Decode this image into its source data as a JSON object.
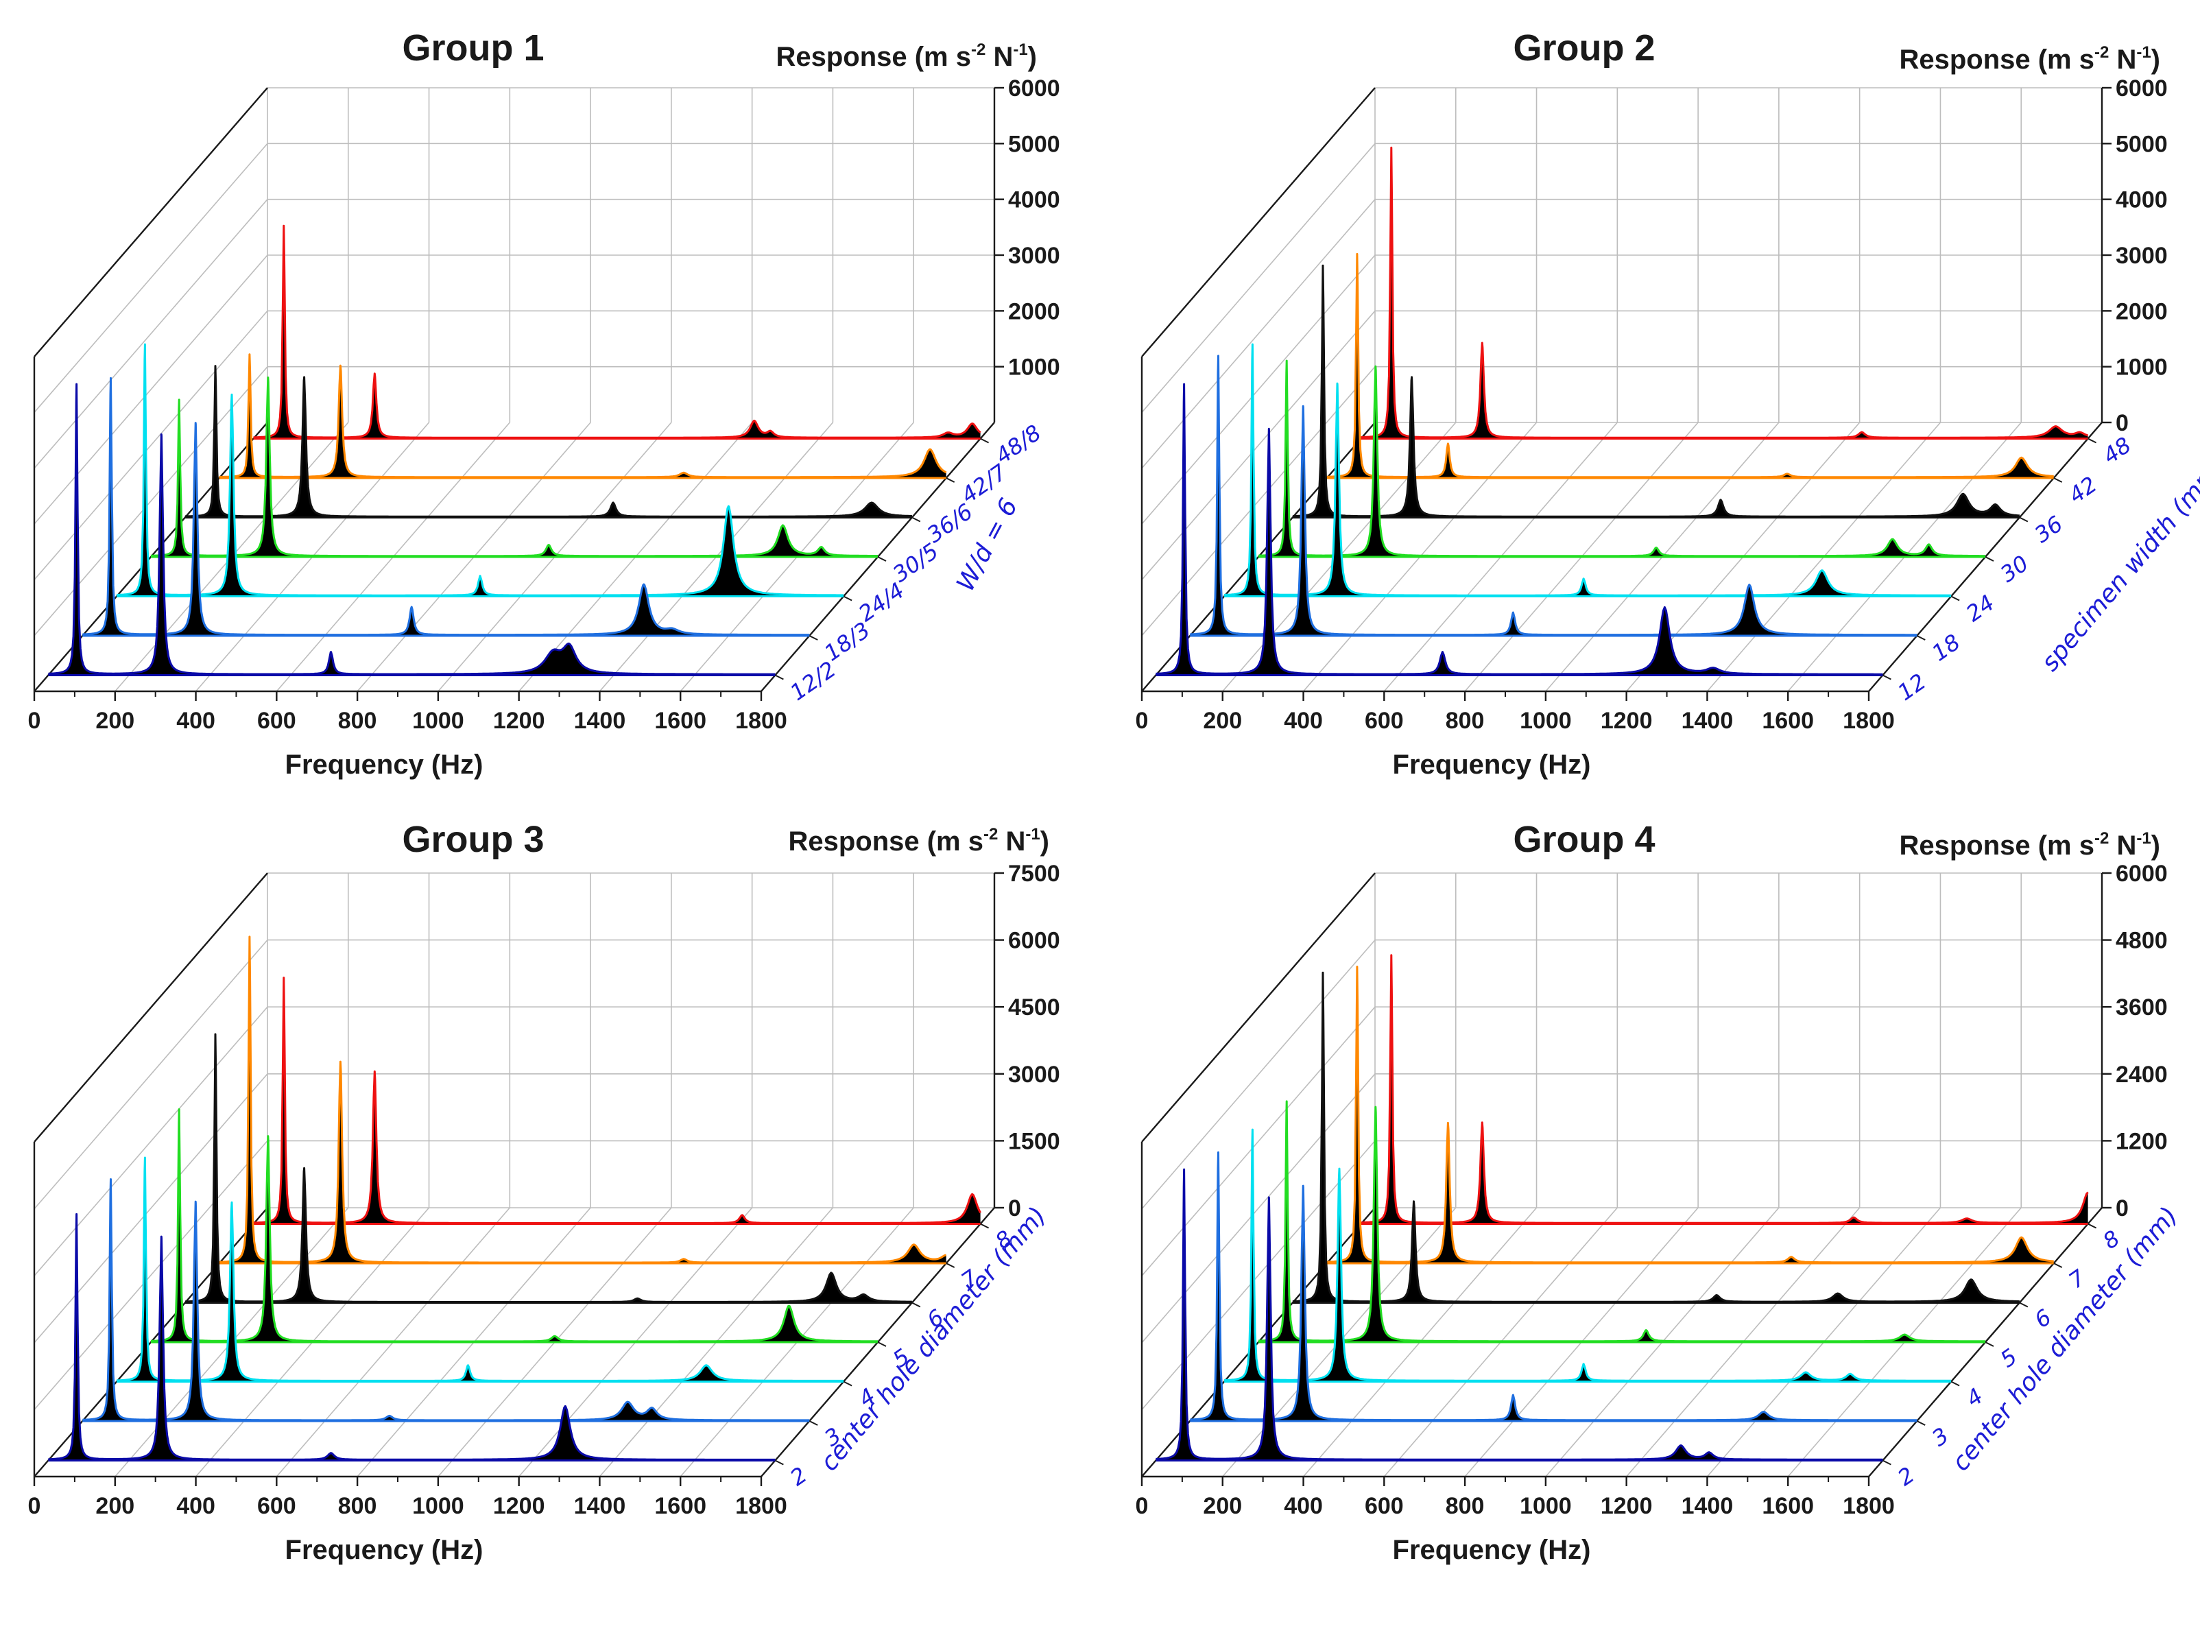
{
  "chart_data": [
    {
      "type": "waterfall",
      "title": "Group 1",
      "xlabel": "Frequency (Hz)",
      "ylabel": {
        "main": "Response (m s",
        "sup1": "-2",
        "mid": " N",
        "sup2": "-1",
        "end": ")"
      },
      "xlim": [
        0,
        1800
      ],
      "xticks": [
        0,
        200,
        400,
        600,
        800,
        1000,
        1200,
        1400,
        1600,
        1800
      ],
      "ylim": [
        0,
        6000
      ],
      "yticks": [
        1000,
        2000,
        3000,
        4000,
        5000,
        6000
      ],
      "zlabel": "W/d = 6",
      "grid": true,
      "series": [
        {
          "name": "12/2",
          "color": "#0a0aa8",
          "peaks": [
            [
              70,
              5200,
              3
            ],
            [
              280,
              4300,
              5
            ],
            [
              700,
              400,
              6
            ],
            [
              1250,
              350,
              25
            ],
            [
              1290,
              450,
              20
            ]
          ]
        },
        {
          "name": "18/3",
          "color": "#1f6fe0",
          "peaks": [
            [
              70,
              4600,
              3
            ],
            [
              280,
              3800,
              5
            ],
            [
              815,
              500,
              6
            ],
            [
              1390,
              900,
              15
            ],
            [
              1460,
              80,
              20
            ]
          ]
        },
        {
          "name": "24/4",
          "color": "#00e0f0",
          "peaks": [
            [
              70,
              4500,
              3
            ],
            [
              285,
              3600,
              5
            ],
            [
              900,
              350,
              6
            ],
            [
              1515,
              1600,
              15
            ]
          ]
        },
        {
          "name": "30/5",
          "color": "#22dd22",
          "peaks": [
            [
              70,
              2800,
              3
            ],
            [
              290,
              3200,
              5
            ],
            [
              985,
              200,
              8
            ],
            [
              1565,
              550,
              15
            ],
            [
              1660,
              150,
              10
            ]
          ]
        },
        {
          "name": "36/6",
          "color": "#111111",
          "peaks": [
            [
              75,
              2700,
              3
            ],
            [
              295,
              2500,
              5
            ],
            [
              1060,
              250,
              8
            ],
            [
              1700,
              250,
              20
            ]
          ]
        },
        {
          "name": "42/7",
          "color": "#ff8800",
          "peaks": [
            [
              75,
              2200,
              3
            ],
            [
              300,
              2000,
              5
            ],
            [
              1150,
              80,
              12
            ],
            [
              1760,
              500,
              18
            ]
          ]
        },
        {
          "name": "48/8",
          "color": "#ee1111",
          "peaks": [
            [
              75,
              3800,
              3
            ],
            [
              300,
              1150,
              5
            ],
            [
              1240,
              300,
              12
            ],
            [
              1280,
              100,
              10
            ],
            [
              1720,
              80,
              15
            ],
            [
              1780,
              250,
              15
            ]
          ]
        }
      ]
    },
    {
      "type": "waterfall",
      "title": "Group 2",
      "xlabel": "Frequency (Hz)",
      "ylabel": {
        "main": "Response (m s",
        "sup1": "-2",
        "mid": " N",
        "sup2": "-1",
        "end": ")"
      },
      "xlim": [
        0,
        1800
      ],
      "xticks": [
        0,
        200,
        400,
        600,
        800,
        1000,
        1200,
        1400,
        1600,
        1800
      ],
      "ylim": [
        0,
        6000
      ],
      "yticks": [
        0,
        1000,
        2000,
        3000,
        4000,
        5000,
        6000
      ],
      "zlabel": "specimen width (mm)",
      "grid": true,
      "series": [
        {
          "name": "12",
          "color": "#0a0aa8",
          "peaks": [
            [
              70,
              5200,
              3
            ],
            [
              280,
              4400,
              5
            ],
            [
              710,
              400,
              8
            ],
            [
              1260,
              1200,
              15
            ],
            [
              1380,
              100,
              20
            ]
          ]
        },
        {
          "name": "18",
          "color": "#1f6fe0",
          "peaks": [
            [
              70,
              5000,
              3
            ],
            [
              280,
              4100,
              5
            ],
            [
              800,
              400,
              6
            ],
            [
              1385,
              900,
              15
            ]
          ]
        },
        {
          "name": "24",
          "color": "#00e0f0",
          "peaks": [
            [
              70,
              4500,
              3
            ],
            [
              280,
              3800,
              5
            ],
            [
              890,
              300,
              6
            ],
            [
              1480,
              450,
              18
            ]
          ]
        },
        {
          "name": "30",
          "color": "#22dd22",
          "peaks": [
            [
              70,
              3500,
              3
            ],
            [
              290,
              3400,
              5
            ],
            [
              985,
              150,
              8
            ],
            [
              1570,
              300,
              15
            ],
            [
              1660,
              200,
              10
            ]
          ]
        },
        {
          "name": "36",
          "color": "#111111",
          "peaks": [
            [
              75,
              4500,
              3
            ],
            [
              295,
              2500,
              5
            ],
            [
              1060,
              300,
              8
            ],
            [
              1660,
              400,
              18
            ],
            [
              1740,
              200,
              15
            ]
          ]
        },
        {
          "name": "42",
          "color": "#ff8800",
          "peaks": [
            [
              75,
              4000,
              3
            ],
            [
              300,
              600,
              5
            ],
            [
              1140,
              60,
              10
            ],
            [
              1720,
              350,
              18
            ]
          ]
        },
        {
          "name": "48",
          "color": "#ee1111",
          "peaks": [
            [
              75,
              5200,
              3
            ],
            [
              300,
              1700,
              5
            ],
            [
              1240,
              100,
              10
            ],
            [
              1720,
              200,
              20
            ],
            [
              1780,
              80,
              15
            ]
          ]
        }
      ]
    },
    {
      "type": "waterfall",
      "title": "Group 3",
      "xlabel": "Frequency (Hz)",
      "ylabel": {
        "main": "Response (m s",
        "sup1": "-2",
        "mid": " N",
        "sup2": "-1",
        "end": ")"
      },
      "xlim": [
        0,
        1800
      ],
      "xticks": [
        0,
        200,
        400,
        600,
        800,
        1000,
        1200,
        1400,
        1600,
        1800
      ],
      "ylim": [
        0,
        7500
      ],
      "yticks": [
        0,
        1500,
        3000,
        4500,
        6000,
        7500
      ],
      "zlabel": "center hole diameter (mm)",
      "grid": true,
      "series": [
        {
          "name": "2",
          "color": "#0a0aa8",
          "peaks": [
            [
              70,
              5500,
              3
            ],
            [
              280,
              5000,
              5
            ],
            [
              700,
              150,
              10
            ],
            [
              1280,
              1200,
              15
            ]
          ]
        },
        {
          "name": "3",
          "color": "#1f6fe0",
          "peaks": [
            [
              70,
              5400,
              3
            ],
            [
              280,
              4900,
              5
            ],
            [
              760,
              100,
              10
            ],
            [
              1350,
              400,
              18
            ],
            [
              1410,
              250,
              15
            ]
          ]
        },
        {
          "name": "4",
          "color": "#00e0f0",
          "peaks": [
            [
              70,
              5000,
              3
            ],
            [
              285,
              4000,
              5
            ],
            [
              870,
              350,
              6
            ],
            [
              1460,
              350,
              18
            ]
          ]
        },
        {
          "name": "5",
          "color": "#22dd22",
          "peaks": [
            [
              70,
              5200,
              3
            ],
            [
              290,
              4600,
              5
            ],
            [
              1000,
              120,
              10
            ],
            [
              1580,
              800,
              15
            ]
          ]
        },
        {
          "name": "6",
          "color": "#111111",
          "peaks": [
            [
              75,
              6000,
              3
            ],
            [
              295,
              3000,
              5
            ],
            [
              1120,
              80,
              10
            ],
            [
              1600,
              650,
              15
            ],
            [
              1680,
              150,
              15
            ]
          ]
        },
        {
          "name": "7",
          "color": "#ff8800",
          "peaks": [
            [
              75,
              7300,
              3
            ],
            [
              300,
              4500,
              5
            ],
            [
              1150,
              80,
              10
            ],
            [
              1720,
              400,
              18
            ],
            [
              1800,
              150,
              15
            ]
          ]
        },
        {
          "name": "8",
          "color": "#ee1111",
          "peaks": [
            [
              75,
              5500,
              3
            ],
            [
              300,
              3400,
              5
            ],
            [
              1210,
              180,
              8
            ],
            [
              1780,
              650,
              15
            ]
          ]
        }
      ]
    },
    {
      "type": "waterfall",
      "title": "Group 4",
      "xlabel": "Frequency (Hz)",
      "ylabel": {
        "main": "Response (m s",
        "sup1": "-2",
        "mid": " N",
        "sup2": "-1",
        "end": ")"
      },
      "xlim": [
        0,
        1800
      ],
      "xticks": [
        0,
        200,
        400,
        600,
        800,
        1000,
        1200,
        1400,
        1600,
        1800
      ],
      "ylim": [
        0,
        6000
      ],
      "yticks": [
        0,
        1200,
        2400,
        3600,
        4800,
        6000
      ],
      "zlabel": "center hole diameter (mm)",
      "grid": true,
      "series": [
        {
          "name": "2",
          "color": "#0a0aa8",
          "peaks": [
            [
              70,
              5200,
              3
            ],
            [
              280,
              4700,
              5
            ],
            [
              1300,
              250,
              15
            ],
            [
              1370,
              120,
              12
            ]
          ]
        },
        {
          "name": "3",
          "color": "#1f6fe0",
          "peaks": [
            [
              70,
              4800,
              3
            ],
            [
              280,
              4200,
              5
            ],
            [
              800,
              450,
              6
            ],
            [
              1420,
              150,
              15
            ]
          ]
        },
        {
          "name": "4",
          "color": "#00e0f0",
          "peaks": [
            [
              70,
              4500,
              3
            ],
            [
              285,
              3800,
              5
            ],
            [
              890,
              300,
              6
            ],
            [
              1440,
              150,
              15
            ],
            [
              1550,
              120,
              12
            ]
          ]
        },
        {
          "name": "5",
          "color": "#22dd22",
          "peaks": [
            [
              70,
              4300,
              3
            ],
            [
              290,
              4200,
              5
            ],
            [
              960,
              200,
              8
            ],
            [
              1600,
              120,
              15
            ]
          ]
        },
        {
          "name": "6",
          "color": "#111111",
          "peaks": [
            [
              75,
              5900,
              3
            ],
            [
              300,
              1800,
              5
            ],
            [
              1050,
              120,
              10
            ],
            [
              1350,
              150,
              15
            ],
            [
              1680,
              400,
              18
            ]
          ]
        },
        {
          "name": "7",
          "color": "#ff8800",
          "peaks": [
            [
              75,
              5300,
              3
            ],
            [
              300,
              2500,
              5
            ],
            [
              1150,
              100,
              10
            ],
            [
              1720,
              450,
              18
            ]
          ]
        },
        {
          "name": "8",
          "color": "#ee1111",
          "peaks": [
            [
              75,
              4800,
              3
            ],
            [
              300,
              1800,
              5
            ],
            [
              1220,
              100,
              10
            ],
            [
              1500,
              80,
              15
            ],
            [
              1800,
              550,
              15
            ]
          ]
        }
      ]
    }
  ]
}
